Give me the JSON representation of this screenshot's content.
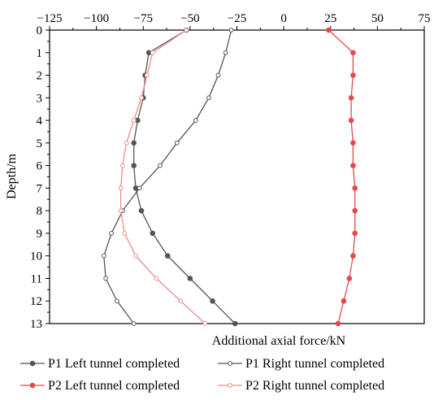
{
  "chart_data": {
    "type": "line",
    "xlabel": "Additional axial force/kN",
    "ylabel": "Depth/m",
    "xlim": [
      -125,
      75
    ],
    "ylim": [
      0,
      13
    ],
    "y_inverted": true,
    "x_axis_position": "top",
    "xticks": [
      -125,
      -100,
      -75,
      -50,
      -25,
      0,
      25,
      50,
      75
    ],
    "yticks": [
      0,
      1,
      2,
      3,
      4,
      5,
      6,
      7,
      8,
      9,
      10,
      11,
      12,
      13
    ],
    "grid": false,
    "legend_position": "bottom",
    "depth": [
      0,
      1,
      2,
      3,
      4,
      5,
      6,
      7,
      8,
      9,
      10,
      11,
      12,
      13
    ],
    "series": [
      {
        "name": "P1 Left tunnel completed",
        "color": "#555555",
        "marker": "filled-circle",
        "values": [
          -52,
          -72,
          -74,
          -75,
          -78,
          -80,
          -80,
          -79,
          -76,
          -70,
          -62,
          -50,
          -38,
          -26
        ]
      },
      {
        "name": "P1 Right tunnel completed",
        "color": "#555555",
        "marker": "hollow-circle",
        "values": [
          -28,
          -31,
          -35,
          -40,
          -47,
          -57,
          -66,
          -77,
          -86,
          -92,
          -96,
          -95,
          -89,
          -80
        ]
      },
      {
        "name": "P2 Left tunnel completed",
        "color": "#e8474b",
        "marker": "filled-circle",
        "values": [
          24,
          37,
          37,
          36,
          36,
          37,
          37,
          38,
          38,
          38,
          37,
          35,
          32,
          29
        ]
      },
      {
        "name": "P2 Right tunnel completed",
        "color": "#f08a8e",
        "marker": "hollow-circle",
        "values": [
          -52,
          -70,
          -73,
          -76,
          -80,
          -84,
          -86,
          -87,
          -87,
          -85,
          -79,
          -68,
          -55,
          -42
        ]
      }
    ]
  }
}
